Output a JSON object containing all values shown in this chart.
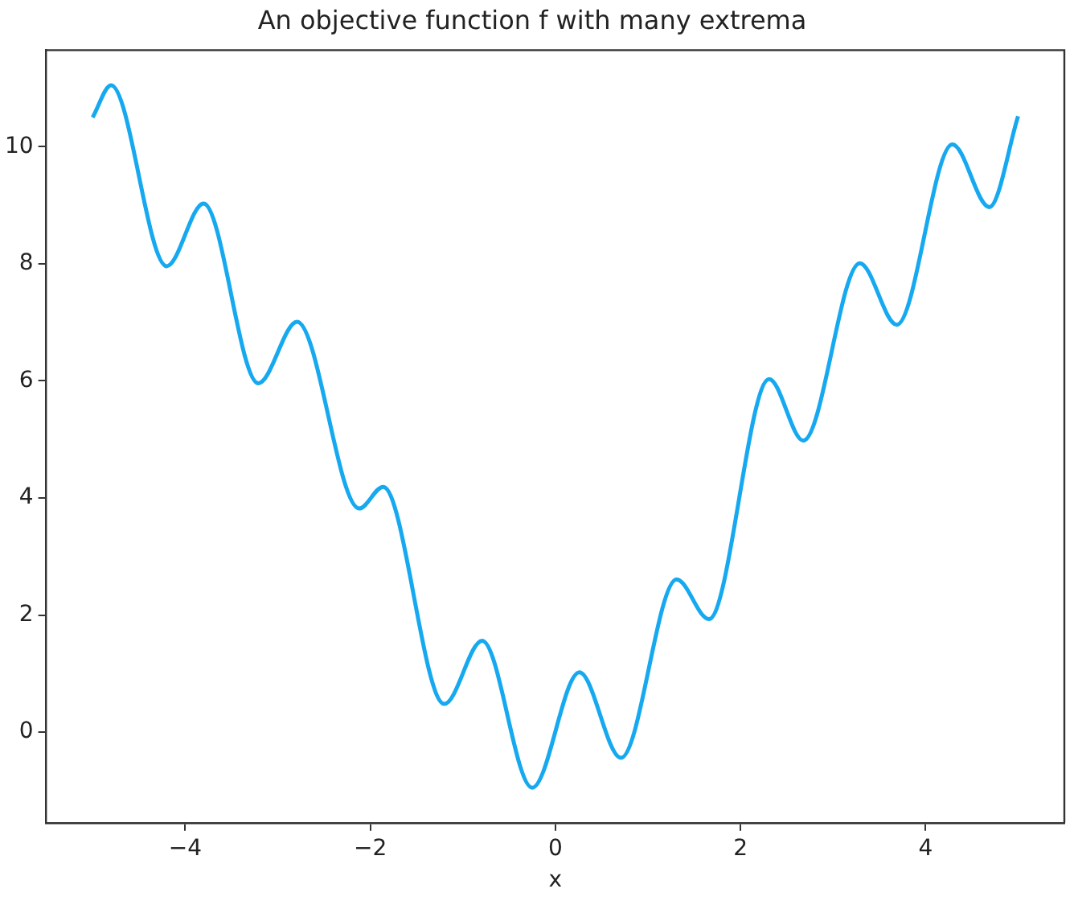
{
  "chart_data": {
    "type": "line",
    "title": "An objective function f with many extrema",
    "xlabel": "x",
    "x": [
      -5.0,
      -4.8,
      -4.2,
      -3.8,
      -3.21,
      -2.79,
      -2.12,
      -1.86,
      -1.2,
      -0.79,
      -0.25,
      0.26,
      0.71,
      1.31,
      1.66,
      2.31,
      2.68,
      3.29,
      3.69,
      4.29,
      4.69,
      5.0
    ],
    "series": [
      {
        "color": "#16a9ef",
        "values": [
          10.5,
          11.05,
          7.96,
          9.03,
          5.96,
          7.01,
          3.82,
          4.19,
          0.48,
          1.56,
          -0.95,
          1.02,
          -0.44,
          2.61,
          1.93,
          6.03,
          4.98,
          8.01,
          6.96,
          10.04,
          8.97,
          10.52
        ]
      }
    ],
    "xlim": [
      -5.5,
      5.5
    ],
    "ylim": [
      -1.55,
      11.65
    ],
    "xticks": [
      -4,
      -2,
      0,
      2,
      4
    ],
    "yticks": [
      0,
      2,
      4,
      6,
      8,
      10
    ],
    "grid": false,
    "legend": false,
    "marker": "none",
    "line_style": "solid"
  }
}
